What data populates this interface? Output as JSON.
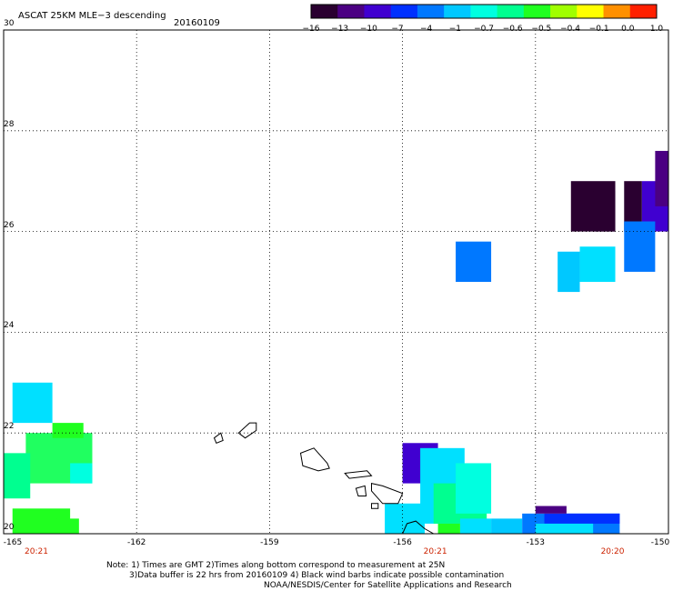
{
  "title": "ASCAT 25KM MLE−3 descending",
  "date": "20160109",
  "colorbar": {
    "labels": [
      "−16",
      "−13",
      "−10",
      "−7",
      "−4",
      "−1",
      "−0.7",
      "−0.6",
      "−0.5",
      "−0.4",
      "−0.1",
      "0.0",
      "1.0"
    ],
    "colors": [
      "#2a0030",
      "#4b0082",
      "#4000d0",
      "#0030ff",
      "#0078ff",
      "#00c8ff",
      "#00ffe0",
      "#00ff90",
      "#20ff20",
      "#a0ff00",
      "#ffff00",
      "#ff9000",
      "#ff2000"
    ]
  },
  "axes": {
    "lon_labels": [
      "-165",
      "-162",
      "-159",
      "-156",
      "-153",
      "-150"
    ],
    "lat_labels": [
      "30",
      "28",
      "26",
      "24",
      "22",
      "20"
    ],
    "lon_range": [
      -165,
      -150
    ],
    "lat_range": [
      20,
      30
    ]
  },
  "times": [
    {
      "lon": -165,
      "label": "20:21"
    },
    {
      "lon": -156,
      "label": "20:21"
    },
    {
      "lon": -152,
      "label": "20:20"
    }
  ],
  "notes": {
    "line1": "Note: 1) Times are GMT 2)Times along bottom correspond to measurement at 25N",
    "line2": "3)Data buffer is 22 hrs from 20160109 4) Black wind barbs indicate possible contamination",
    "line3": "NOAA/NESDIS/Center for Satellite Applications and Research"
  },
  "cells": [
    {
      "lon0": -152.2,
      "lat0": 26.0,
      "lon1": -151.2,
      "lat1": 27.0,
      "color": "#2a0030"
    },
    {
      "lon0": -151.7,
      "lat0": 26.0,
      "lon1": -151.2,
      "lat1": 26.8,
      "color": "#2a0030"
    },
    {
      "lon0": -150.6,
      "lat0": 26.0,
      "lon1": -150.0,
      "lat1": 27.0,
      "color": "#4000d0"
    },
    {
      "lon0": -150.3,
      "lat0": 26.5,
      "lon1": -150.0,
      "lat1": 27.6,
      "color": "#4b0082"
    },
    {
      "lon0": -151.0,
      "lat0": 26.0,
      "lon1": -150.6,
      "lat1": 27.0,
      "color": "#2a0030"
    },
    {
      "lon0": -151.0,
      "lat0": 25.2,
      "lon1": -150.3,
      "lat1": 26.2,
      "color": "#0078ff"
    },
    {
      "lon0": -154.8,
      "lat0": 25.0,
      "lon1": -154.0,
      "lat1": 25.8,
      "color": "#0078ff"
    },
    {
      "lon0": -152.5,
      "lat0": 24.8,
      "lon1": -152.0,
      "lat1": 25.6,
      "color": "#00c8ff"
    },
    {
      "lon0": -152.0,
      "lat0": 25.0,
      "lon1": -151.2,
      "lat1": 25.7,
      "color": "#00e0ff"
    },
    {
      "lon0": -164.8,
      "lat0": 22.2,
      "lon1": -163.9,
      "lat1": 23.0,
      "color": "#00e0ff"
    },
    {
      "lon0": -164.5,
      "lat0": 21.0,
      "lon1": -163.0,
      "lat1": 22.0,
      "color": "#20ff60"
    },
    {
      "lon0": -165.0,
      "lat0": 20.7,
      "lon1": -164.4,
      "lat1": 21.6,
      "color": "#00ff90"
    },
    {
      "lon0": -163.9,
      "lat0": 21.9,
      "lon1": -163.2,
      "lat1": 22.2,
      "color": "#20ff20"
    },
    {
      "lon0": -163.5,
      "lat0": 21.0,
      "lon1": -163.0,
      "lat1": 21.4,
      "color": "#00ffe0"
    },
    {
      "lon0": -164.8,
      "lat0": 20.0,
      "lon1": -163.5,
      "lat1": 20.5,
      "color": "#20ff20"
    },
    {
      "lon0": -163.8,
      "lat0": 20.0,
      "lon1": -163.3,
      "lat1": 20.3,
      "color": "#20ff20"
    },
    {
      "lon0": -156.0,
      "lat0": 21.0,
      "lon1": -155.2,
      "lat1": 21.8,
      "color": "#4000d0"
    },
    {
      "lon0": -155.6,
      "lat0": 20.2,
      "lon1": -154.6,
      "lat1": 21.7,
      "color": "#00e0ff"
    },
    {
      "lon0": -156.4,
      "lat0": 20.0,
      "lon1": -155.5,
      "lat1": 20.6,
      "color": "#00e0ff"
    },
    {
      "lon0": -155.3,
      "lat0": 20.2,
      "lon1": -154.1,
      "lat1": 21.0,
      "color": "#00ff90"
    },
    {
      "lon0": -154.8,
      "lat0": 20.4,
      "lon1": -154.0,
      "lat1": 21.4,
      "color": "#00ffe0"
    },
    {
      "lon0": -155.2,
      "lat0": 20.0,
      "lon1": -154.7,
      "lat1": 20.2,
      "color": "#20ff20"
    },
    {
      "lon0": -154.7,
      "lat0": 20.0,
      "lon1": -154.0,
      "lat1": 20.3,
      "color": "#00e0ff"
    },
    {
      "lon0": -154.0,
      "lat0": 20.0,
      "lon1": -153.3,
      "lat1": 20.3,
      "color": "#00c8ff"
    },
    {
      "lon0": -153.3,
      "lat0": 20.0,
      "lon1": -151.1,
      "lat1": 20.4,
      "color": "#0078ff"
    },
    {
      "lon0": -152.8,
      "lat0": 20.2,
      "lon1": -151.1,
      "lat1": 20.4,
      "color": "#0030ff"
    },
    {
      "lon0": -153.0,
      "lat0": 20.4,
      "lon1": -152.3,
      "lat1": 20.55,
      "color": "#4b0082"
    },
    {
      "lon0": -153.0,
      "lat0": 20.0,
      "lon1": -151.7,
      "lat1": 20.2,
      "color": "#00e0ff"
    }
  ],
  "islands": [
    {
      "name": "Kauai",
      "pts": [
        [
          -159.7,
          22.0
        ],
        [
          -159.45,
          22.2
        ],
        [
          -159.3,
          22.2
        ],
        [
          -159.3,
          22.05
        ],
        [
          -159.55,
          21.9
        ],
        [
          -159.7,
          22.0
        ]
      ]
    },
    {
      "name": "Niihau",
      "pts": [
        [
          -160.25,
          21.9
        ],
        [
          -160.1,
          22.0
        ],
        [
          -160.05,
          21.85
        ],
        [
          -160.2,
          21.8
        ],
        [
          -160.25,
          21.9
        ]
      ]
    },
    {
      "name": "Oahu",
      "pts": [
        [
          -158.3,
          21.6
        ],
        [
          -158.0,
          21.7
        ],
        [
          -157.7,
          21.4
        ],
        [
          -157.65,
          21.3
        ],
        [
          -157.9,
          21.25
        ],
        [
          -158.25,
          21.35
        ],
        [
          -158.3,
          21.6
        ]
      ]
    },
    {
      "name": "Molokai",
      "pts": [
        [
          -157.3,
          21.2
        ],
        [
          -156.8,
          21.25
        ],
        [
          -156.7,
          21.15
        ],
        [
          -157.2,
          21.1
        ],
        [
          -157.3,
          21.2
        ]
      ]
    },
    {
      "name": "Lanai",
      "pts": [
        [
          -157.05,
          20.9
        ],
        [
          -156.85,
          20.95
        ],
        [
          -156.82,
          20.75
        ],
        [
          -157.0,
          20.75
        ],
        [
          -157.05,
          20.9
        ]
      ]
    },
    {
      "name": "Maui",
      "pts": [
        [
          -156.7,
          21.0
        ],
        [
          -156.45,
          20.95
        ],
        [
          -156.0,
          20.8
        ],
        [
          -156.1,
          20.6
        ],
        [
          -156.45,
          20.6
        ],
        [
          -156.7,
          20.85
        ],
        [
          -156.7,
          21.0
        ]
      ]
    },
    {
      "name": "Kahoolawe",
      "pts": [
        [
          -156.7,
          20.6
        ],
        [
          -156.55,
          20.6
        ],
        [
          -156.55,
          20.5
        ],
        [
          -156.7,
          20.5
        ],
        [
          -156.7,
          20.6
        ]
      ]
    },
    {
      "name": "Hawaii",
      "pts": [
        [
          -155.9,
          20.2
        ],
        [
          -155.7,
          20.25
        ],
        [
          -155.5,
          20.1
        ],
        [
          -155.3,
          20.0
        ],
        [
          -156.0,
          20.0
        ],
        [
          -155.9,
          20.2
        ]
      ]
    }
  ]
}
